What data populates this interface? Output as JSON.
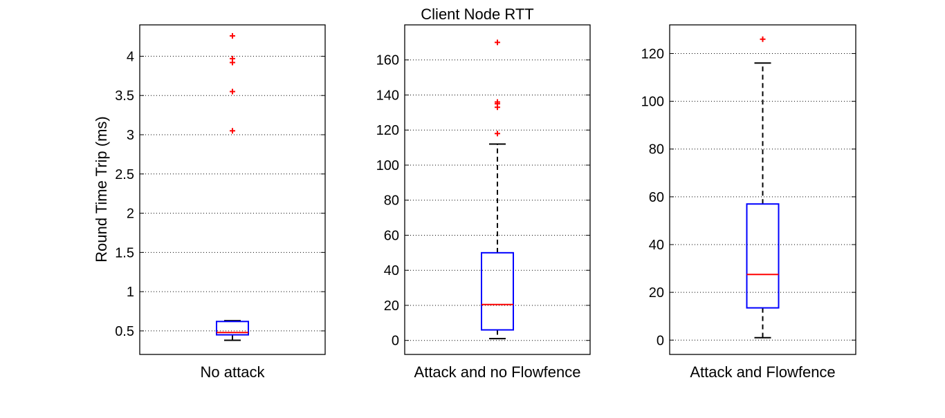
{
  "figure": {
    "title": "Client Node RTT",
    "ylabel": "Round Time Trip (ms)"
  },
  "colors": {
    "box": "#0000ff",
    "median": "#ff0000",
    "outlier": "#ff0000",
    "whisker": "#000000",
    "grid": "#000000",
    "background": "#ffffff"
  },
  "chart_data": [
    {
      "type": "box",
      "category": "No attack",
      "ylim": [
        0.2,
        4.4
      ],
      "yticks": [
        0.5,
        1,
        1.5,
        2,
        2.5,
        3,
        3.5,
        4
      ],
      "ytick_labels": [
        "0.5",
        "1",
        "1.5",
        "2",
        "2.5",
        "3",
        "3.5",
        "4"
      ],
      "grid": true,
      "box": {
        "whisker_low": 0.38,
        "q1": 0.45,
        "median": 0.48,
        "q3": 0.62,
        "whisker_high": 0.63
      },
      "outliers": [
        3.05,
        3.55,
        3.92,
        3.97,
        4.26
      ]
    },
    {
      "type": "box",
      "category": "Attack and no Flowfence",
      "ylim": [
        -8,
        180
      ],
      "yticks": [
        0,
        20,
        40,
        60,
        80,
        100,
        120,
        140,
        160
      ],
      "ytick_labels": [
        "0",
        "20",
        "40",
        "60",
        "80",
        "100",
        "120",
        "140",
        "160"
      ],
      "grid": true,
      "box": {
        "whisker_low": 1,
        "q1": 6,
        "median": 20.5,
        "q3": 50,
        "whisker_high": 112
      },
      "outliers": [
        118,
        133,
        135,
        136,
        170
      ]
    },
    {
      "type": "box",
      "category": "Attack and Flowfence",
      "ylim": [
        -6,
        132
      ],
      "yticks": [
        0,
        20,
        40,
        60,
        80,
        100,
        120
      ],
      "ytick_labels": [
        "0",
        "20",
        "40",
        "60",
        "80",
        "100",
        "120"
      ],
      "grid": true,
      "box": {
        "whisker_low": 1,
        "q1": 13.5,
        "median": 27.5,
        "q3": 57,
        "whisker_high": 116
      },
      "outliers": [
        126
      ]
    }
  ]
}
